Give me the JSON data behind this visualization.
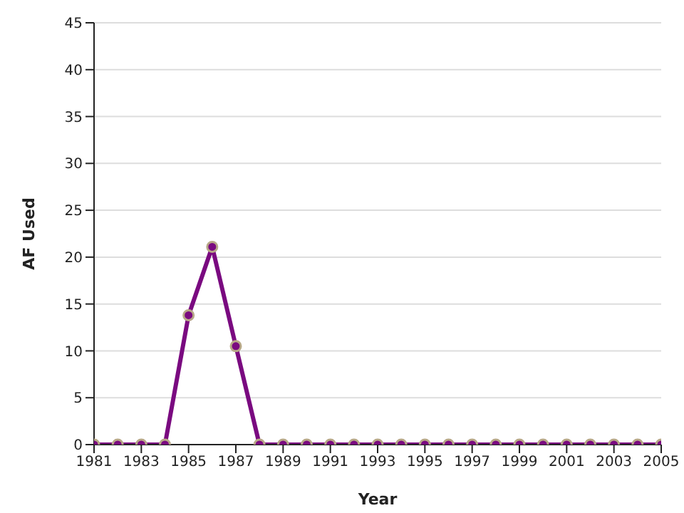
{
  "chart_data": {
    "type": "line",
    "xlabel": "Year",
    "ylabel": "AF Used",
    "x": [
      1981,
      1982,
      1983,
      1984,
      1985,
      1986,
      1987,
      1988,
      1989,
      1990,
      1991,
      1992,
      1993,
      1994,
      1995,
      1996,
      1997,
      1998,
      1999,
      2000,
      2001,
      2002,
      2003,
      2004,
      2005
    ],
    "series": [
      {
        "color": "#7a0a80",
        "values": [
          0,
          0,
          0,
          0,
          13.8,
          21.1,
          10.5,
          0,
          0,
          0,
          0,
          0,
          0,
          0,
          0,
          0,
          0,
          0,
          0,
          0,
          0,
          0,
          0,
          0,
          0
        ]
      }
    ],
    "xlim": [
      1981,
      2005
    ],
    "xticks": [
      1981,
      1983,
      1985,
      1987,
      1989,
      1991,
      1993,
      1995,
      1997,
      1999,
      2001,
      2003,
      2005
    ],
    "ylim": [
      0,
      45
    ],
    "yticks": [
      0,
      5,
      10,
      15,
      20,
      25,
      30,
      35,
      40,
      45
    ],
    "grid": "y",
    "marker": "circle",
    "line_style": "solid"
  }
}
